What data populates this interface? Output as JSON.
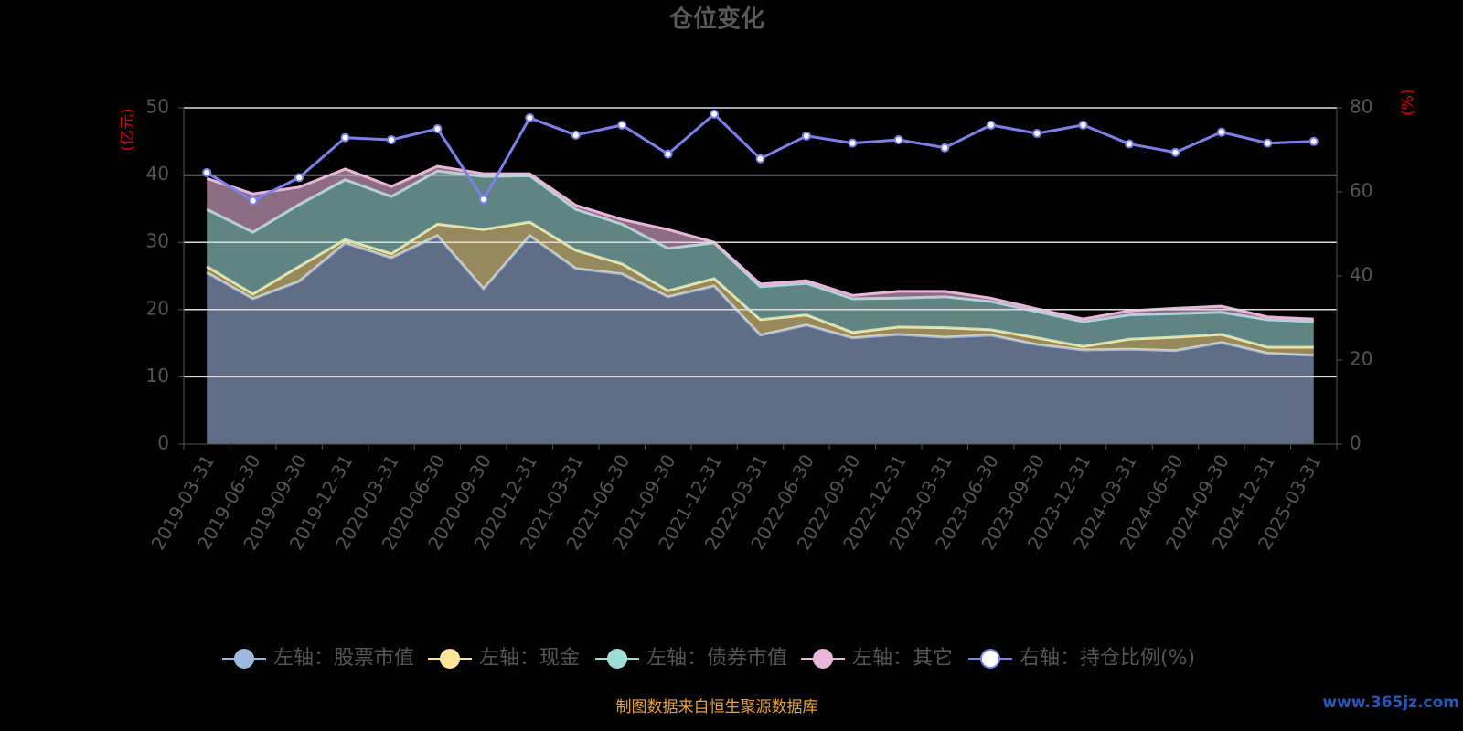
{
  "chart_data": {
    "type": "area",
    "title": "仓位变化",
    "y_label": "(亿元)",
    "y2_label": "(%)",
    "categories": [
      "2019-03-31",
      "2019-06-30",
      "2019-09-30",
      "2019-12-31",
      "2020-03-31",
      "2020-06-30",
      "2020-09-30",
      "2020-12-31",
      "2021-03-31",
      "2021-06-30",
      "2021-09-30",
      "2021-12-31",
      "2022-03-31",
      "2022-06-30",
      "2022-09-30",
      "2022-12-31",
      "2023-03-31",
      "2023-06-30",
      "2023-09-30",
      "2023-12-31",
      "2024-03-31",
      "2024-06-30",
      "2024-09-30",
      "2024-12-31",
      "2025-03-31"
    ],
    "series": [
      {
        "name": "左轴：股票市值",
        "color": "#9fb8e0",
        "values": [
          25.5,
          21.6,
          24.2,
          29.9,
          27.7,
          31.0,
          23.1,
          31.0,
          26.1,
          25.3,
          21.9,
          23.5,
          16.2,
          17.7,
          15.8,
          16.3,
          15.9,
          16.2,
          14.8,
          14.0,
          14.1,
          13.9,
          15.1,
          13.5,
          13.2
        ]
      },
      {
        "name": "左轴：现金",
        "color": "#fbe59c",
        "values": [
          0.9,
          0.7,
          2.2,
          0.5,
          0.6,
          1.7,
          8.8,
          2.0,
          2.7,
          1.5,
          0.9,
          1.1,
          2.3,
          1.5,
          0.8,
          1.1,
          1.4,
          0.8,
          1.0,
          0.5,
          1.5,
          2.0,
          1.2,
          0.9,
          1.2
        ]
      },
      {
        "name": "左轴：债券市值",
        "color": "#9fdcd7",
        "values": [
          8.5,
          9.2,
          9.2,
          8.9,
          8.5,
          7.9,
          7.9,
          6.9,
          6.1,
          5.9,
          6.3,
          5.3,
          4.9,
          4.7,
          5.0,
          4.3,
          4.6,
          4.2,
          3.9,
          3.7,
          3.6,
          3.5,
          3.3,
          4.1,
          3.8
        ]
      },
      {
        "name": "左轴：其它",
        "color": "#e9b5d9",
        "values": [
          4.6,
          5.7,
          2.6,
          1.6,
          1.5,
          0.7,
          0.4,
          0.3,
          0.6,
          0.7,
          2.8,
          0.1,
          0.4,
          0.4,
          0.5,
          1.0,
          0.8,
          0.5,
          0.4,
          0.4,
          0.6,
          0.8,
          0.9,
          0.4,
          0.4
        ]
      },
      {
        "name": "右轴：持仓比例(%)",
        "color": "#7b80ea",
        "type": "line",
        "axis": "y2",
        "values": [
          64.6,
          57.9,
          63.4,
          72.9,
          72.4,
          75.0,
          58.2,
          77.6,
          73.5,
          75.9,
          69.0,
          78.5,
          67.9,
          73.3,
          71.6,
          72.4,
          70.5,
          75.9,
          73.9,
          75.9,
          71.4,
          69.4,
          74.2,
          71.6,
          72.0
        ]
      }
    ],
    "ylim": [
      0,
      50
    ],
    "yticks": [
      0,
      10,
      20,
      30,
      40,
      50
    ],
    "y2lim": [
      0,
      80
    ],
    "y2ticks": [
      0,
      20,
      40,
      60,
      80
    ],
    "grid": true,
    "source": "制图数据来自恒生聚源数据库",
    "watermark": "www.365jz.com"
  }
}
